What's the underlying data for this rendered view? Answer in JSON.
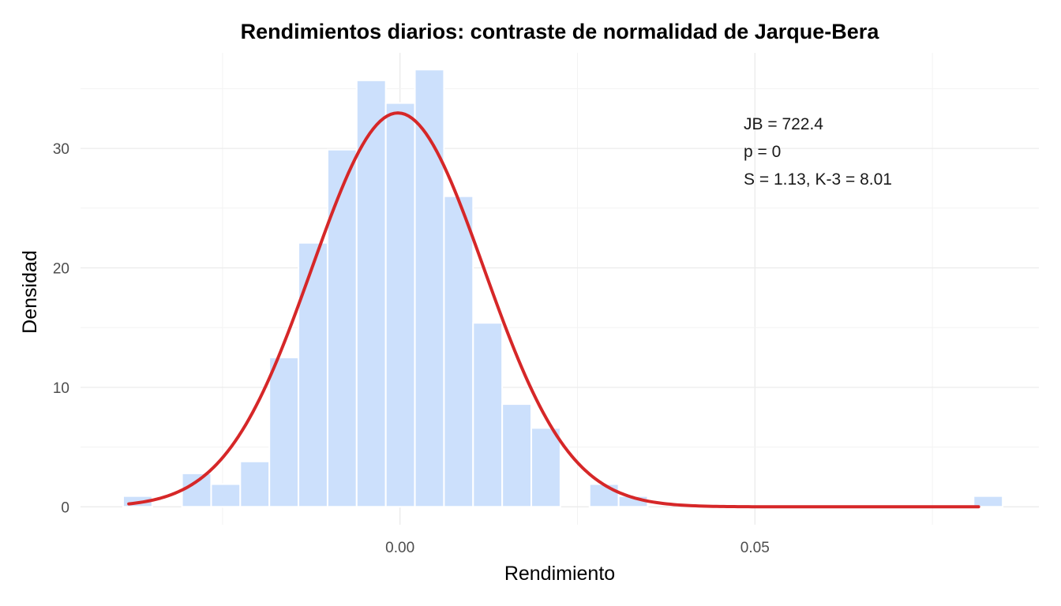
{
  "chart_data": {
    "type": "bar",
    "title": "Rendimientos diarios: contraste de normalidad de Jarque-Bera",
    "xlabel": "Rendimiento",
    "ylabel": "Densidad",
    "xlim": [
      -0.045,
      0.09
    ],
    "ylim": [
      -1.5,
      38
    ],
    "x_ticks": [
      0.0,
      0.05
    ],
    "x_tick_labels": [
      "0.00",
      "0.05"
    ],
    "y_ticks": [
      0,
      10,
      20,
      30
    ],
    "y_tick_labels": [
      "0",
      "10",
      "20",
      "30"
    ],
    "grid": true,
    "histogram": {
      "color": "#cce0fc",
      "bins": [
        {
          "start": -0.039,
          "end": -0.0349,
          "density": 0.9
        },
        {
          "start": -0.0307,
          "end": -0.0266,
          "density": 2.8
        },
        {
          "start": -0.0266,
          "end": -0.0225,
          "density": 1.9
        },
        {
          "start": -0.0225,
          "end": -0.0184,
          "density": 3.8
        },
        {
          "start": -0.0184,
          "end": -0.0143,
          "density": 12.5
        },
        {
          "start": -0.0143,
          "end": -0.0102,
          "density": 22.1
        },
        {
          "start": -0.0102,
          "end": -0.0061,
          "density": 29.9
        },
        {
          "start": -0.0061,
          "end": -0.002,
          "density": 35.7
        },
        {
          "start": -0.002,
          "end": 0.0021,
          "density": 33.8
        },
        {
          "start": 0.0021,
          "end": 0.0062,
          "density": 36.6
        },
        {
          "start": 0.0062,
          "end": 0.0103,
          "density": 26.0
        },
        {
          "start": 0.0103,
          "end": 0.0144,
          "density": 15.4
        },
        {
          "start": 0.0144,
          "end": 0.0185,
          "density": 8.6
        },
        {
          "start": 0.0185,
          "end": 0.0226,
          "density": 6.6
        },
        {
          "start": 0.0267,
          "end": 0.0308,
          "density": 1.9
        },
        {
          "start": 0.0308,
          "end": 0.0349,
          "density": 0.9
        },
        {
          "start": 0.0808,
          "end": 0.0849,
          "density": 0.9
        }
      ]
    },
    "normal_curve": {
      "color": "#d62728",
      "mean": -0.0003,
      "sd": 0.0121,
      "x_range": [
        -0.0382,
        0.0815
      ]
    },
    "annotations": [
      "JB = 722.4",
      "p = 0",
      "S = 1.13, K-3 = 8.01"
    ]
  }
}
